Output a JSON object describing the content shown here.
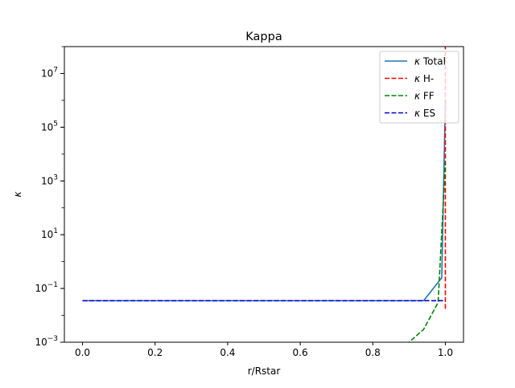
{
  "chart_data": {
    "type": "line",
    "title": "Kappa",
    "xlabel": "r/Rstar",
    "ylabel": "κ",
    "xlim": [
      -0.05,
      1.05
    ],
    "ylim_log10": [
      -3,
      8
    ],
    "yscale": "log",
    "grid": false,
    "legend_position": "upper right",
    "x_ticks": [
      {
        "value": 0.0,
        "label": "0.0"
      },
      {
        "value": 0.2,
        "label": "0.2"
      },
      {
        "value": 0.4,
        "label": "0.4"
      },
      {
        "value": 0.6,
        "label": "0.6"
      },
      {
        "value": 0.8,
        "label": "0.8"
      },
      {
        "value": 1.0,
        "label": "1.0"
      }
    ],
    "y_ticks": [
      {
        "exp": -3,
        "base": "10",
        "sup": "−3"
      },
      {
        "exp": -1,
        "base": "10",
        "sup": "−1"
      },
      {
        "exp": 1,
        "base": "10",
        "sup": "1"
      },
      {
        "exp": 3,
        "base": "10",
        "sup": "3"
      },
      {
        "exp": 5,
        "base": "10",
        "sup": "5"
      },
      {
        "exp": 7,
        "base": "10",
        "sup": "7"
      }
    ],
    "series": [
      {
        "name": "κ Total",
        "legend_label": "Total",
        "color": "#1f77b4",
        "style": "solid",
        "points": [
          [
            0.0,
            0.035
          ],
          [
            0.94,
            0.035
          ],
          [
            0.99,
            0.25
          ],
          [
            1.0,
            1000000
          ]
        ]
      },
      {
        "name": "κ H-",
        "legend_label": "H-",
        "color": "#ff0000",
        "style": "dashed",
        "points": [
          [
            1.0,
            0.0175
          ],
          [
            1.0,
            1000000000.0
          ]
        ]
      },
      {
        "name": "κ FF",
        "legend_label": "FF",
        "color": "#008000",
        "style": "dashed",
        "points": [
          [
            0.88,
            0.0005
          ],
          [
            0.9,
            0.001
          ],
          [
            0.94,
            0.003
          ],
          [
            0.98,
            0.03
          ],
          [
            1.0,
            5000
          ]
        ]
      },
      {
        "name": "κ ES",
        "legend_label": "ES",
        "color": "#0000cc",
        "style": "dashed",
        "points": [
          [
            0.0,
            0.035
          ],
          [
            1.0,
            0.035
          ]
        ]
      }
    ]
  }
}
